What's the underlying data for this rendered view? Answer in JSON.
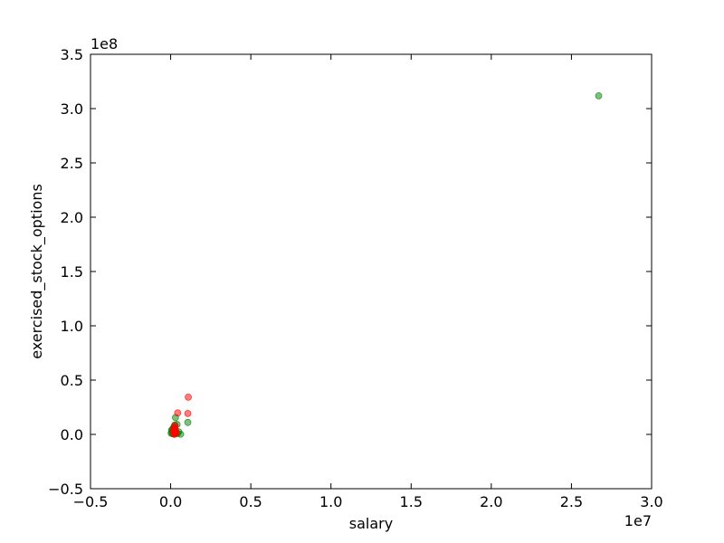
{
  "chart_data": {
    "type": "scatter",
    "xlabel": "salary",
    "ylabel": "exercised_stock_options",
    "x_exponent_label": "1e7",
    "y_exponent_label": "1e8",
    "xlim": [
      -5000000,
      30000000
    ],
    "ylim": [
      -50000000,
      350000000
    ],
    "x_ticks": [
      -5000000,
      0,
      5000000,
      10000000,
      15000000,
      20000000,
      25000000,
      30000000
    ],
    "x_tick_labels": [
      "−0.5",
      "0.0",
      "0.5",
      "1.0",
      "1.5",
      "2.0",
      "2.5",
      "3.0"
    ],
    "y_ticks": [
      -50000000,
      0,
      50000000,
      100000000,
      150000000,
      200000000,
      250000000,
      300000000,
      350000000
    ],
    "y_tick_labels": [
      "−0.5",
      "0.0",
      "0.5",
      "1.0",
      "1.5",
      "2.0",
      "2.5",
      "3.0",
      "3.5"
    ],
    "grid": false,
    "series": [
      {
        "color": "#008000",
        "points": [
          [
            26700000,
            311800000
          ],
          [
            1070000,
            11000000
          ],
          [
            300000,
            15500000
          ],
          [
            620000,
            200000
          ],
          [
            400000,
            9200000
          ],
          [
            250000,
            8600000
          ],
          [
            200000,
            6800000
          ],
          [
            150000,
            5500000
          ],
          [
            100000,
            4300000
          ],
          [
            60000,
            3800000
          ],
          [
            300000,
            3100000
          ],
          [
            500000,
            2400000
          ],
          [
            180000,
            2000000
          ],
          [
            90000,
            1600000
          ],
          [
            350000,
            1300000
          ],
          [
            260000,
            900000
          ],
          [
            140000,
            500000
          ],
          [
            220000,
            200000
          ],
          [
            420000,
            700000
          ],
          [
            30000,
            1100000
          ]
        ]
      },
      {
        "color": "#ff0000",
        "points": [
          [
            1100000,
            34300000
          ],
          [
            1070000,
            19300000
          ],
          [
            440000,
            19800000
          ],
          [
            270000,
            8000000
          ],
          [
            250000,
            6400000
          ],
          [
            210000,
            5000000
          ],
          [
            300000,
            4200000
          ],
          [
            180000,
            3500000
          ],
          [
            260000,
            2800000
          ],
          [
            230000,
            2100000
          ],
          [
            320000,
            1500000
          ],
          [
            200000,
            900000
          ],
          [
            280000,
            600000
          ],
          [
            240000,
            200000
          ],
          [
            310000,
            1000000
          ]
        ]
      }
    ]
  }
}
